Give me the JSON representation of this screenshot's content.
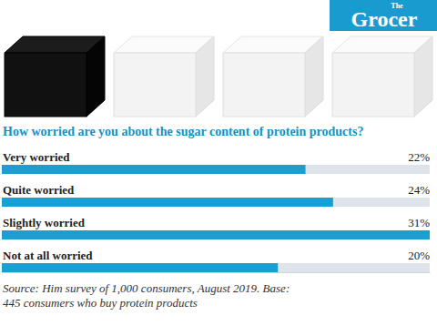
{
  "chart_data": {
    "type": "bar",
    "orientation": "horizontal",
    "brand": [
      "The",
      "Grocer"
    ],
    "title": "How worried are you about the sugar content of protein products?",
    "categories": [
      "Very worried",
      "Quite worried",
      "Slightly worried",
      "Not at all worried"
    ],
    "values": [
      22,
      24,
      31,
      20
    ],
    "value_labels": [
      "22%",
      "24%",
      "31%",
      "20%"
    ],
    "data_labels": true,
    "color": "#1b9fd3",
    "xlim": [
      0,
      31
    ],
    "xticks": [],
    "tick_labels": false,
    "grid": false,
    "source": [
      "Source: Him survey of 1,000 consumers, August 2019. Base:",
      "445 consumers who buy protein products"
    ]
  }
}
